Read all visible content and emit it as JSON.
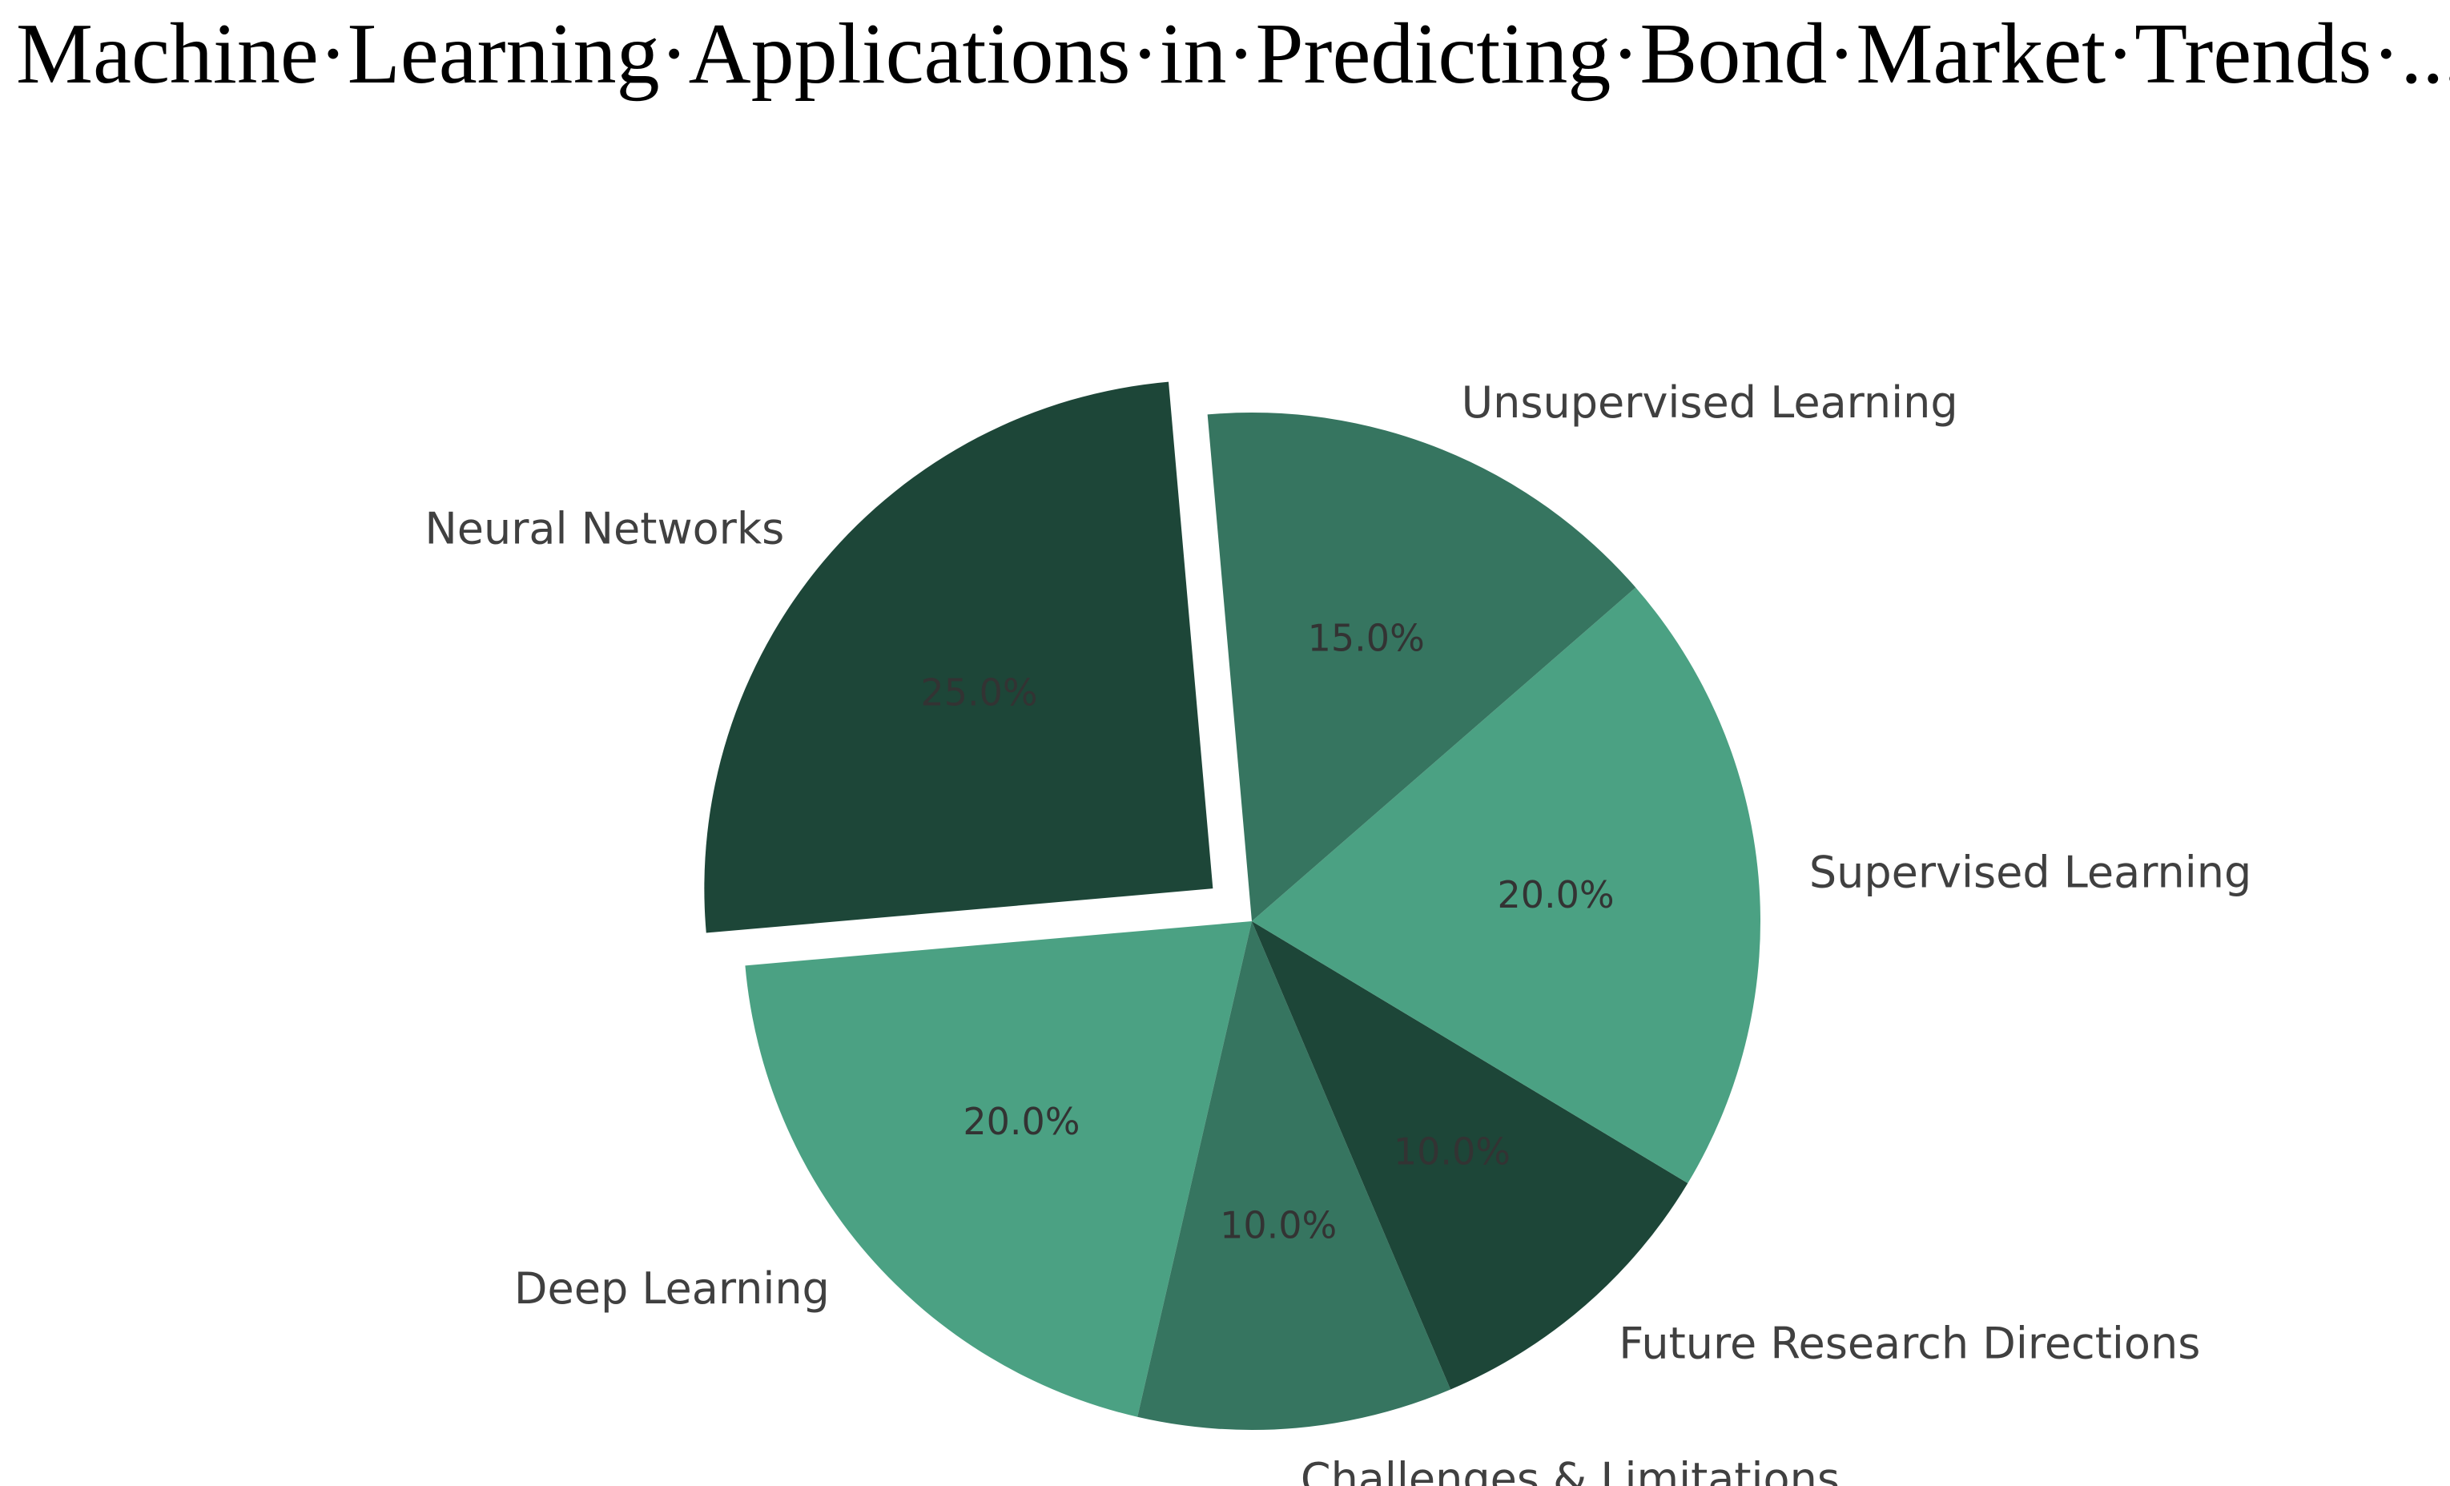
{
  "title": "Machine·Learning·Applications·in·Predicting·Bond·Market·Trends·...",
  "chart_data": {
    "type": "pie",
    "categories": [
      "Neural Networks",
      "Deep Learning",
      "Challenges & Limitations",
      "Future Research Directions",
      "Supervised Learning",
      "Unsupervised Learning"
    ],
    "values": [
      25,
      20,
      10,
      10,
      20,
      15
    ],
    "labels": [
      "25.0%",
      "20.0%",
      "10.0%",
      "10.0%",
      "20.0%",
      "15.0%"
    ],
    "colors": [
      "#1d4638",
      "#4ba183",
      "#367560",
      "#1d4638",
      "#4ba183",
      "#367560"
    ],
    "explode": [
      0.1,
      0,
      0,
      0,
      0,
      0
    ],
    "start_angle_deg": -95,
    "direction": "counterclockwise",
    "legend": "none"
  }
}
